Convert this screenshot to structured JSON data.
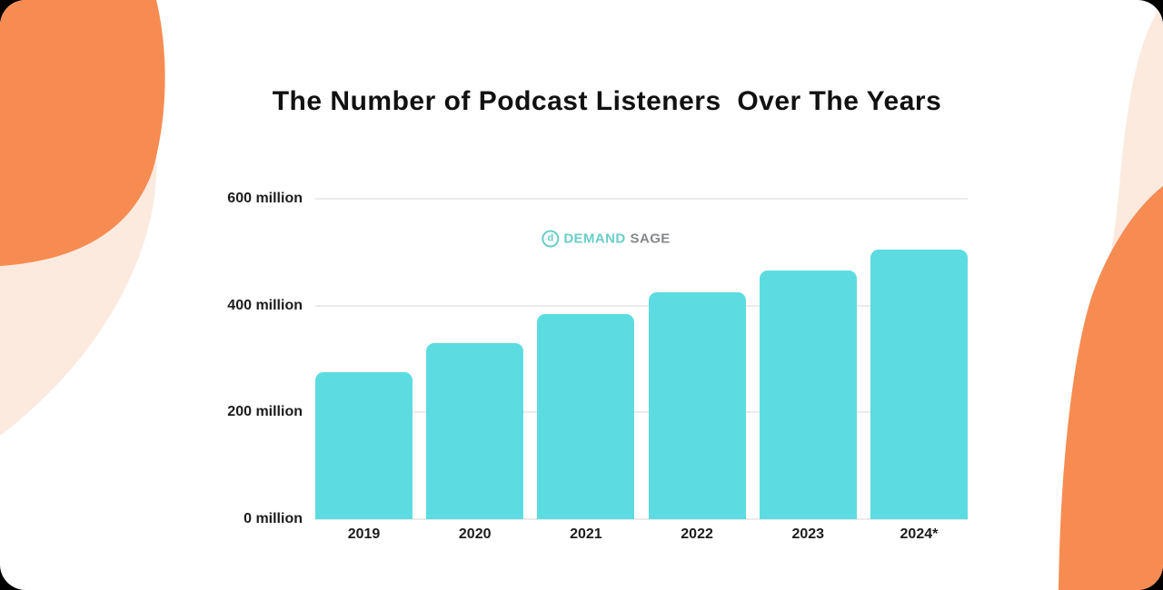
{
  "page": {
    "outer_background": "#000000",
    "card_background": "#ffffff"
  },
  "title": "The Number of Podcast Listeners  Over The Years",
  "watermark": {
    "brand_first": "DEMAND",
    "brand_second": "SAGE",
    "icon_letter": "d"
  },
  "colors": {
    "bar": "#5CDCE1",
    "orange_blob": "#F78C52",
    "peach_blob": "#FCEADF",
    "gridline": "#EBEBEB",
    "title_text": "#111111",
    "axis_text": "#1C1C1C",
    "logo_teal": "#63CBC7",
    "logo_gray": "#7E8285"
  },
  "chart_data": {
    "type": "bar",
    "title": "The Number of Podcast Listeners  Over The Years",
    "categories": [
      "2019",
      "2020",
      "2021",
      "2022",
      "2023",
      "2024*"
    ],
    "values": [
      275,
      330,
      385,
      425,
      465,
      505
    ],
    "unit": "million",
    "xlabel": "",
    "ylabel": "",
    "ylim": [
      0,
      600
    ],
    "yticks": [
      {
        "value": 600,
        "label": "600 million"
      },
      {
        "value": 400,
        "label": "400 million"
      },
      {
        "value": 200,
        "label": "200 million"
      },
      {
        "value": 0,
        "label": "0 million"
      }
    ],
    "grid": true,
    "legend": false
  }
}
